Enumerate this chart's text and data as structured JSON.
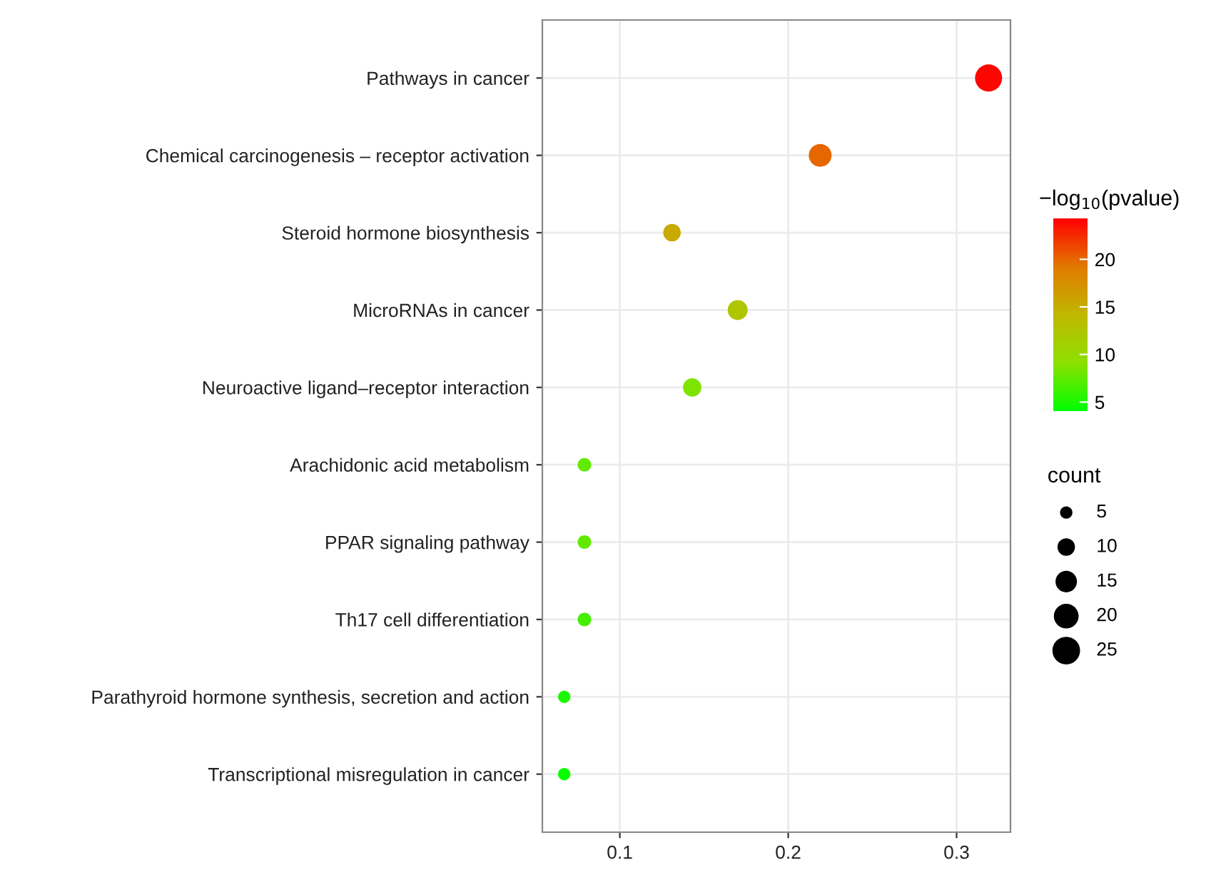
{
  "chart_data": {
    "type": "bubble",
    "categories": [
      "Pathways in cancer",
      "Chemical carcinogenesis – receptor activation",
      "Steroid hormone biosynthesis",
      "MicroRNAs in cancer",
      "Neuroactive ligand–receptor interaction",
      "Arachidonic acid metabolism",
      "PPAR signaling pathway",
      "Th17 cell differentiation",
      "Parathyroid hormone synthesis, secretion and action",
      "Transcriptional misregulation in cancer"
    ],
    "orientation": "horizontal",
    "values": [
      0.319,
      0.219,
      0.131,
      0.17,
      0.143,
      0.079,
      0.079,
      0.079,
      0.067,
      0.067
    ],
    "sizes": [
      24,
      17,
      10,
      13,
      11,
      6,
      6,
      6,
      5,
      5
    ],
    "cvalues": [
      24,
      20,
      15.5,
      12.5,
      8.5,
      7.5,
      7.5,
      6.5,
      5,
      4.3
    ],
    "clabel": "−log$_{10}$(pvalue)",
    "clim": [
      4.05,
      24.3
    ],
    "cticks": [
      5,
      10,
      15,
      20
    ],
    "legend_title": "count",
    "size_legend": [
      5,
      10,
      15,
      20,
      25
    ],
    "xlim": [
      0.054,
      0.332
    ],
    "xticks": [
      0.1,
      0.2,
      0.3
    ],
    "grid": true
  }
}
